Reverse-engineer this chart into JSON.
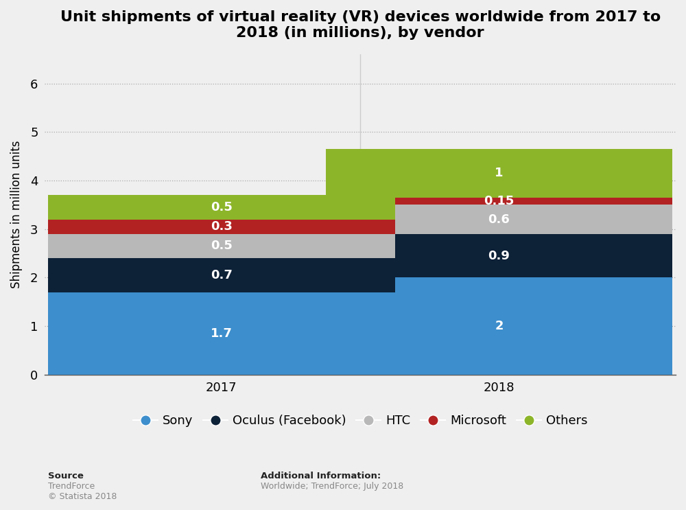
{
  "title": "Unit shipments of virtual reality (VR) devices worldwide from 2017 to\n2018 (in millions), by vendor",
  "years": [
    "2017",
    "2018"
  ],
  "vendors": [
    "Sony",
    "Oculus (Facebook)",
    "HTC",
    "Microsoft",
    "Others"
  ],
  "values": {
    "Sony": [
      1.7,
      2.0
    ],
    "Oculus (Facebook)": [
      0.7,
      0.9
    ],
    "HTC": [
      0.5,
      0.6
    ],
    "Microsoft": [
      0.3,
      0.15
    ],
    "Others": [
      0.5,
      1.0
    ]
  },
  "bar_labels": {
    "Sony": [
      "1.7",
      "2"
    ],
    "Oculus (Facebook)": [
      "0.7",
      "0.9"
    ],
    "HTC": [
      "0.5",
      "0.6"
    ],
    "Microsoft": [
      "0.3",
      "0.15"
    ],
    "Others": [
      "0.5",
      "1"
    ]
  },
  "colors": {
    "Sony": "#3d8ecc",
    "Oculus (Facebook)": "#0d2137",
    "HTC": "#b8b8b8",
    "Microsoft": "#b22222",
    "Others": "#8db52a"
  },
  "ylabel": "Shipments in million units",
  "ylim": [
    0,
    6.6
  ],
  "yticks": [
    0,
    1,
    2,
    3,
    4,
    5,
    6
  ],
  "bar_width": 0.55,
  "x_positions": [
    0.28,
    0.72
  ],
  "xlim": [
    0.0,
    1.0
  ],
  "background_color": "#f0efef",
  "plot_bg_color": "#f0efef",
  "title_fontsize": 16,
  "label_fontsize": 12,
  "tick_fontsize": 13,
  "legend_fontsize": 13,
  "source_text_bold": "Source",
  "source_text_normal": "TrendForce\n© Statista 2018",
  "additional_text_bold": "Additional Information:",
  "additional_text_normal": "Worldwide; TrendForce; July 2018",
  "bar_label_fontsize": 13,
  "bar_label_color": "white"
}
